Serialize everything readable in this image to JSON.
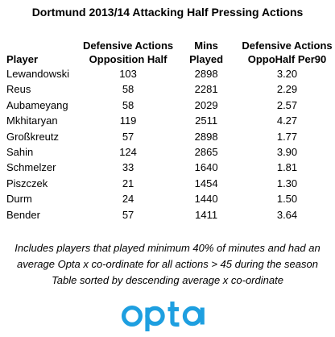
{
  "title": "Dortmund 2013/14 Attacking Half Pressing Actions",
  "table": {
    "headers": {
      "player": "Player",
      "def_actions_line1": "Defensive Actions",
      "def_actions_line2": "Opposition Half",
      "mins_line1": "Mins",
      "mins_line2": "Played",
      "per90_line1": "Defensive Actions",
      "per90_line2": "OppoHalf Per90"
    },
    "rows": [
      {
        "player": "Lewandowski",
        "def_actions": "103",
        "mins": "2898",
        "per90": "3.20"
      },
      {
        "player": "Reus",
        "def_actions": "58",
        "mins": "2281",
        "per90": "2.29"
      },
      {
        "player": "Aubameyang",
        "def_actions": "58",
        "mins": "2029",
        "per90": "2.57"
      },
      {
        "player": "Mkhitaryan",
        "def_actions": "119",
        "mins": "2511",
        "per90": "4.27"
      },
      {
        "player": "Großkreutz",
        "def_actions": "57",
        "mins": "2898",
        "per90": "1.77"
      },
      {
        "player": "Sahin",
        "def_actions": "124",
        "mins": "2865",
        "per90": "3.90"
      },
      {
        "player": "Schmelzer",
        "def_actions": "33",
        "mins": "1640",
        "per90": "1.81"
      },
      {
        "player": "Piszczek",
        "def_actions": "21",
        "mins": "1454",
        "per90": "1.30"
      },
      {
        "player": "Durm",
        "def_actions": "24",
        "mins": "1440",
        "per90": "1.50"
      },
      {
        "player": "Bender",
        "def_actions": "57",
        "mins": "1411",
        "per90": "3.64"
      }
    ]
  },
  "footnote": {
    "line1": "Includes players that played minimum 40% of minutes and had an",
    "line2": "average Opta x co-ordinate for all actions > 45 during the season",
    "line3": "Table sorted by descending average x co-ordinate"
  },
  "logo": {
    "text": "opta",
    "color": "#1e9fe0"
  }
}
